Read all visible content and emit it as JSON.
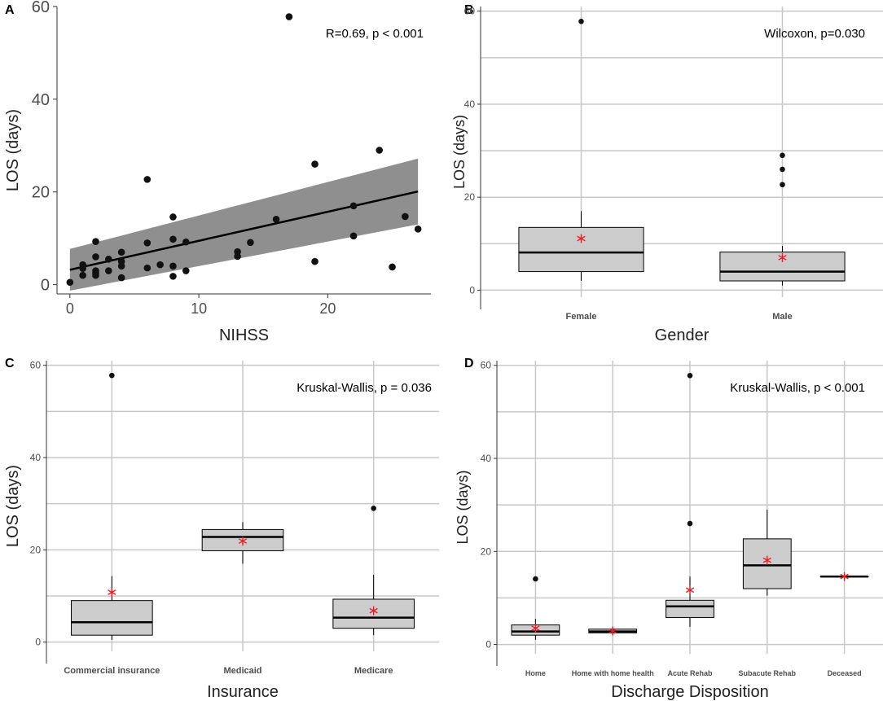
{
  "figure": {
    "colors": {
      "grid": "#c8c8c8",
      "box_fill": "#cccccc",
      "band_fill": "#8f8f8f",
      "point": "#111111",
      "mean_marker": "#ee1c25",
      "axis": "#333333"
    }
  },
  "chart_data": [
    {
      "id": "A",
      "panel_label": "A",
      "type": "scatter",
      "title": "",
      "annotation": "R=0.69, p < 0.001",
      "xlabel": "NIHSS",
      "ylabel": "LOS (days)",
      "xlim": [
        -1,
        28
      ],
      "ylim": [
        -2,
        60
      ],
      "xticks": [
        0,
        10,
        20
      ],
      "yticks": [
        0,
        20,
        40,
        60
      ],
      "grid": false,
      "points": [
        [
          0,
          0.5
        ],
        [
          1,
          4.3
        ],
        [
          1,
          2
        ],
        [
          1,
          3.5
        ],
        [
          2,
          9.3
        ],
        [
          2,
          6
        ],
        [
          2,
          2.5
        ],
        [
          2,
          3
        ],
        [
          2,
          2
        ],
        [
          3,
          5.5
        ],
        [
          3,
          3
        ],
        [
          4,
          7
        ],
        [
          4,
          5
        ],
        [
          4,
          4
        ],
        [
          4,
          1.5
        ],
        [
          6,
          22.7
        ],
        [
          6,
          9
        ],
        [
          6,
          3.6
        ],
        [
          7,
          4.3
        ],
        [
          8,
          14.6
        ],
        [
          8,
          9.8
        ],
        [
          8,
          4
        ],
        [
          8,
          1.8
        ],
        [
          9,
          9.2
        ],
        [
          9,
          3
        ],
        [
          13,
          7.1
        ],
        [
          13,
          6.1
        ],
        [
          14,
          9.1
        ],
        [
          16,
          14.1
        ],
        [
          17,
          57.8
        ],
        [
          19,
          26
        ],
        [
          19,
          5
        ],
        [
          22,
          17
        ],
        [
          22,
          10.5
        ],
        [
          24,
          29
        ],
        [
          25,
          3.8
        ],
        [
          26,
          14.7
        ],
        [
          27,
          12
        ]
      ],
      "regression": {
        "x0": 0,
        "y0": 3.2,
        "x1": 27,
        "y1": 20.1
      },
      "confidence_band": {
        "x0": 0,
        "lower0": -1.3,
        "upper0": 7.7,
        "x1": 27,
        "lower1": 13.0,
        "upper1": 27.2
      }
    },
    {
      "id": "B",
      "panel_label": "B",
      "type": "box",
      "title": "",
      "annotation": "Wilcoxon, p=0.030",
      "xlabel": "Gender",
      "ylabel": "LOS (days)",
      "ylim": [
        -1.5,
        61
      ],
      "yticks": [
        0,
        20,
        40,
        60
      ],
      "grid": true,
      "categories": [
        "Female",
        "Male"
      ],
      "boxes": [
        {
          "q1": 4.0,
          "median": 8.1,
          "q3": 13.5,
          "whisker_low": 2.0,
          "whisker_high": 17.0,
          "mean": 11.1,
          "outliers": [
            57.8
          ]
        },
        {
          "q1": 2.0,
          "median": 4.0,
          "q3": 8.2,
          "whisker_low": 1.0,
          "whisker_high": 9.5,
          "mean": 7.0,
          "outliers": [
            22.7,
            26.0,
            29.0
          ]
        }
      ]
    },
    {
      "id": "C",
      "panel_label": "C",
      "type": "box",
      "title": "",
      "annotation": "Kruskal-Wallis, p = 0.036",
      "xlabel": "Insurance",
      "ylabel": "LOS (days)",
      "ylim": [
        -2,
        61
      ],
      "yticks": [
        0,
        20,
        40,
        60
      ],
      "grid": true,
      "categories": [
        "Commercial insurance",
        "Medicaid",
        "Medicare"
      ],
      "boxes": [
        {
          "q1": 1.5,
          "median": 4.3,
          "q3": 9.0,
          "whisker_low": 0.5,
          "whisker_high": 14.3,
          "mean": 10.8,
          "outliers": [
            57.8
          ]
        },
        {
          "q1": 19.8,
          "median": 22.8,
          "q3": 24.4,
          "whisker_low": 17.0,
          "whisker_high": 26.0,
          "mean": 21.9,
          "outliers": []
        },
        {
          "q1": 3.0,
          "median": 5.3,
          "q3": 9.3,
          "whisker_low": 1.5,
          "whisker_high": 14.6,
          "mean": 6.8,
          "outliers": [
            29.0
          ]
        }
      ]
    },
    {
      "id": "D",
      "panel_label": "D",
      "type": "box",
      "title": "",
      "annotation": "Kruskal-Wallis, p < 0.001",
      "xlabel": "Discharge Disposition",
      "ylabel": "LOS (days)",
      "ylim": [
        -2,
        61
      ],
      "yticks": [
        0,
        20,
        40,
        60
      ],
      "grid": true,
      "categories": [
        "Home",
        "Home with home health",
        "Acute Rehab",
        "Subacute Rehab",
        "Deceased"
      ],
      "boxes": [
        {
          "q1": 2.0,
          "median": 2.8,
          "q3": 4.2,
          "whisker_low": 1.0,
          "whisker_high": 5.5,
          "mean": 3.5,
          "outliers": [
            14.1
          ]
        },
        {
          "q1": 2.5,
          "median": 2.8,
          "q3": 3.3,
          "whisker_low": 2.5,
          "whisker_high": 3.3,
          "mean": 2.9,
          "outliers": []
        },
        {
          "q1": 5.8,
          "median": 8.2,
          "q3": 9.5,
          "whisker_low": 3.8,
          "whisker_high": 14.6,
          "mean": 11.7,
          "outliers": [
            26.0,
            57.8
          ]
        },
        {
          "q1": 12.0,
          "median": 17.0,
          "q3": 22.7,
          "whisker_low": 10.5,
          "whisker_high": 29.0,
          "mean": 18.1,
          "outliers": []
        },
        {
          "q1": 14.6,
          "median": 14.6,
          "q3": 14.6,
          "whisker_low": 14.6,
          "whisker_high": 14.6,
          "mean": 14.6,
          "outliers": []
        }
      ]
    }
  ]
}
